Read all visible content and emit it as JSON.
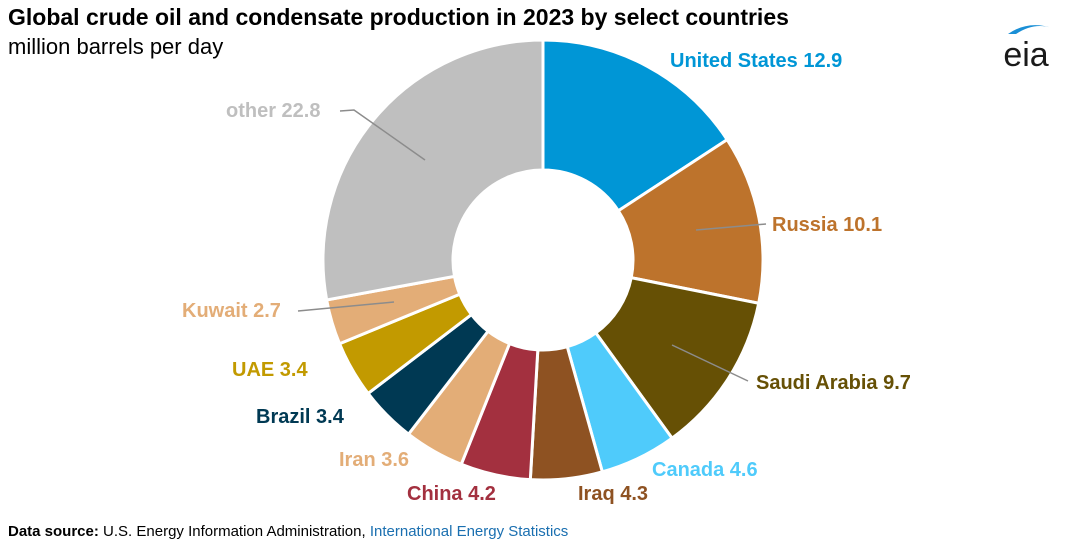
{
  "header": {
    "title": "Global crude oil and condensate production in 2023 by select countries",
    "subtitle": "million barrels per day"
  },
  "logo": {
    "text": "eia",
    "icon": "eia-logo-icon",
    "color": "#1a1a1a",
    "swoosh_color": "#1a8fd6"
  },
  "source": {
    "label": "Data source:",
    "text": "U.S. Energy Information Administration,",
    "link": "International Energy Statistics"
  },
  "chart_data": {
    "type": "pie",
    "style": "donut",
    "title": "Global crude oil and condensate production in 2023 by select countries",
    "unit": "million barrels per day",
    "slices": [
      {
        "name": "United States",
        "value": 12.9,
        "label": "United States 12.9",
        "color": "#0096d6"
      },
      {
        "name": "Russia",
        "value": 10.1,
        "label": "Russia 10.1",
        "color": "#bd732c"
      },
      {
        "name": "Saudi Arabia",
        "value": 9.7,
        "label": "Saudi Arabia 9.7",
        "color": "#665005"
      },
      {
        "name": "Canada",
        "value": 4.6,
        "label": "Canada 4.6",
        "color": "#4fcbfb"
      },
      {
        "name": "Iraq",
        "value": 4.3,
        "label": "Iraq 4.3",
        "color": "#8e5222"
      },
      {
        "name": "China",
        "value": 4.2,
        "label": "China 4.2",
        "color": "#a3303f"
      },
      {
        "name": "Iran",
        "value": 3.6,
        "label": "Iran 3.6",
        "color": "#e3ad77"
      },
      {
        "name": "Brazil",
        "value": 3.4,
        "label": "Brazil 3.4",
        "color": "#003953"
      },
      {
        "name": "UAE",
        "value": 3.4,
        "label": "UAE 3.4",
        "color": "#c29a00"
      },
      {
        "name": "Kuwait",
        "value": 2.7,
        "label": "Kuwait 2.7",
        "color": "#e3ad77"
      },
      {
        "name": "other",
        "value": 22.8,
        "label": "other 22.8",
        "color": "#bfbfbf"
      }
    ]
  }
}
